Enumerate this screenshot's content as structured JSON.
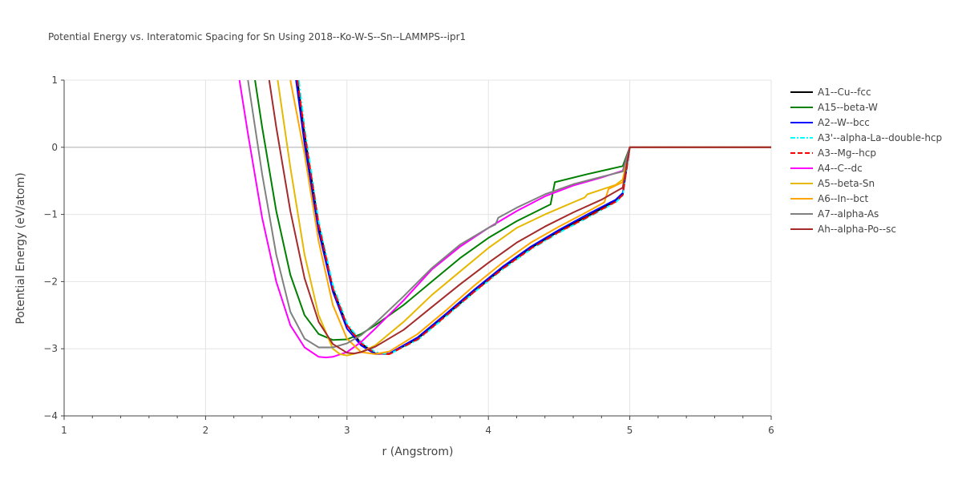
{
  "chart_data": {
    "type": "line",
    "title": "Potential Energy vs. Interatomic Spacing for Sn Using 2018--Ko-W-S--Sn--LAMMPS--ipr1",
    "xlabel": "r (Angstrom)",
    "ylabel": "Potential Energy (eV/atom)",
    "xlim": [
      1,
      6
    ],
    "ylim": [
      -4,
      1
    ],
    "xticks": [
      1,
      2,
      3,
      4,
      5,
      6
    ],
    "xtick_labels": [
      "1",
      "2",
      "3",
      "4",
      "5",
      "6"
    ],
    "yticks": [
      -4,
      -3,
      -2,
      -1,
      0,
      1
    ],
    "ytick_labels": [
      "−4",
      "−3",
      "−2",
      "−1",
      "0",
      "1"
    ],
    "grid": true,
    "legend_position": "right",
    "series": [
      {
        "name": "A1--Cu--fcc",
        "color": "#000000",
        "dash": "solid",
        "x": [
          2.65,
          2.7,
          2.8,
          2.9,
          3.0,
          3.1,
          3.2,
          3.3,
          3.5,
          3.7,
          3.9,
          4.1,
          4.3,
          4.5,
          4.7,
          4.9,
          4.95,
          5.0,
          6.0
        ],
        "y": [
          1.0,
          0.2,
          -1.15,
          -2.1,
          -2.65,
          -2.92,
          -3.07,
          -3.08,
          -2.85,
          -2.5,
          -2.15,
          -1.8,
          -1.5,
          -1.25,
          -1.03,
          -0.8,
          -0.7,
          0.0,
          0.0
        ]
      },
      {
        "name": "A15--beta-W",
        "color": "#008000",
        "dash": "solid",
        "x": [
          2.35,
          2.4,
          2.5,
          2.6,
          2.7,
          2.8,
          2.9,
          3.0,
          3.1,
          3.2,
          3.4,
          3.6,
          3.8,
          4.0,
          4.2,
          4.44,
          4.47,
          4.7,
          4.95,
          5.0,
          6.0
        ],
        "y": [
          1.0,
          0.3,
          -0.95,
          -1.9,
          -2.5,
          -2.78,
          -2.87,
          -2.86,
          -2.78,
          -2.65,
          -2.35,
          -2.0,
          -1.65,
          -1.35,
          -1.1,
          -0.85,
          -0.52,
          -0.4,
          -0.28,
          0.0,
          0.0
        ]
      },
      {
        "name": "A2--W--bcc",
        "color": "#0000ff",
        "dash": "solid",
        "x": [
          2.64,
          2.7,
          2.8,
          2.9,
          3.0,
          3.1,
          3.2,
          3.3,
          3.5,
          3.7,
          3.9,
          4.1,
          4.3,
          4.5,
          4.7,
          4.9,
          4.95,
          5.0,
          6.0
        ],
        "y": [
          1.0,
          0.05,
          -1.25,
          -2.15,
          -2.7,
          -2.95,
          -3.08,
          -3.07,
          -2.83,
          -2.48,
          -2.12,
          -1.78,
          -1.48,
          -1.23,
          -1.0,
          -0.78,
          -0.68,
          0.0,
          0.0
        ]
      },
      {
        "name": "A3'--alpha-La--double-hcp",
        "color": "#00ffff",
        "dash": "dashdot",
        "x": [
          2.66,
          2.7,
          2.8,
          2.9,
          3.0,
          3.1,
          3.2,
          3.3,
          3.5,
          3.7,
          3.9,
          4.1,
          4.3,
          4.5,
          4.7,
          4.9,
          4.95,
          5.0,
          6.0
        ],
        "y": [
          1.0,
          0.3,
          -1.1,
          -2.05,
          -2.62,
          -2.9,
          -3.05,
          -3.08,
          -2.87,
          -2.52,
          -2.16,
          -1.82,
          -1.52,
          -1.27,
          -1.05,
          -0.82,
          -0.72,
          0.0,
          0.0
        ]
      },
      {
        "name": "A3--Mg--hcp",
        "color": "#ff0000",
        "dash": "dash",
        "x": [
          2.65,
          2.7,
          2.8,
          2.9,
          3.0,
          3.1,
          3.2,
          3.3,
          3.5,
          3.7,
          3.9,
          4.1,
          4.3,
          4.5,
          4.7,
          4.9,
          4.95,
          5.0,
          6.0
        ],
        "y": [
          1.0,
          0.22,
          -1.15,
          -2.1,
          -2.65,
          -2.92,
          -3.07,
          -3.08,
          -2.86,
          -2.51,
          -2.15,
          -1.81,
          -1.51,
          -1.26,
          -1.04,
          -0.81,
          -0.71,
          0.0,
          0.0
        ]
      },
      {
        "name": "A4--C--dc",
        "color": "#ff00ff",
        "dash": "solid",
        "x": [
          2.24,
          2.3,
          2.4,
          2.5,
          2.6,
          2.7,
          2.8,
          2.85,
          2.9,
          3.0,
          3.1,
          3.2,
          3.4,
          3.6,
          3.8,
          4.0,
          4.2,
          4.4,
          4.6,
          4.8,
          4.95,
          5.0,
          6.0
        ],
        "y": [
          1.0,
          0.2,
          -1.05,
          -2.0,
          -2.65,
          -2.98,
          -3.12,
          -3.13,
          -3.12,
          -3.05,
          -2.9,
          -2.7,
          -2.28,
          -1.82,
          -1.48,
          -1.2,
          -0.95,
          -0.73,
          -0.57,
          -0.45,
          -0.35,
          0.0,
          0.0
        ]
      },
      {
        "name": "A5--beta-Sn",
        "color": "#e6b800",
        "dash": "solid",
        "x": [
          2.51,
          2.6,
          2.7,
          2.8,
          2.9,
          2.95,
          3.0,
          3.1,
          3.2,
          3.4,
          3.6,
          3.8,
          4.0,
          4.2,
          4.4,
          4.6,
          4.68,
          4.7,
          4.9,
          4.95,
          5.0,
          6.0
        ],
        "y": [
          1.0,
          -0.3,
          -1.6,
          -2.5,
          -3.0,
          -3.08,
          -3.1,
          -3.05,
          -2.95,
          -2.6,
          -2.2,
          -1.85,
          -1.5,
          -1.2,
          -1.0,
          -0.82,
          -0.75,
          -0.7,
          -0.56,
          -0.48,
          0.0,
          0.0
        ]
      },
      {
        "name": "A6--In--bct",
        "color": "#ffa500",
        "dash": "solid",
        "x": [
          2.6,
          2.7,
          2.8,
          2.9,
          3.0,
          3.1,
          3.2,
          3.3,
          3.5,
          3.7,
          3.9,
          4.1,
          4.3,
          4.5,
          4.7,
          4.82,
          4.85,
          4.95,
          5.0,
          6.0
        ],
        "y": [
          1.0,
          -0.1,
          -1.4,
          -2.35,
          -2.85,
          -3.05,
          -3.08,
          -3.04,
          -2.78,
          -2.43,
          -2.06,
          -1.72,
          -1.42,
          -1.18,
          -0.96,
          -0.82,
          -0.62,
          -0.52,
          0.0,
          0.0
        ]
      },
      {
        "name": "A7--alpha-As",
        "color": "#808080",
        "dash": "solid",
        "x": [
          2.3,
          2.4,
          2.5,
          2.6,
          2.7,
          2.8,
          2.9,
          3.0,
          3.1,
          3.2,
          3.4,
          3.6,
          3.8,
          4.0,
          4.05,
          4.07,
          4.2,
          4.4,
          4.6,
          4.8,
          4.95,
          5.0,
          6.0
        ],
        "y": [
          1.0,
          -0.4,
          -1.6,
          -2.45,
          -2.85,
          -2.98,
          -2.98,
          -2.92,
          -2.8,
          -2.62,
          -2.22,
          -1.8,
          -1.45,
          -1.2,
          -1.15,
          -1.05,
          -0.9,
          -0.7,
          -0.55,
          -0.44,
          -0.36,
          0.0,
          0.0
        ]
      },
      {
        "name": "Ah--alpha-Po--sc",
        "color": "#a52a2a",
        "dash": "solid",
        "x": [
          2.45,
          2.5,
          2.6,
          2.7,
          2.8,
          2.9,
          3.0,
          3.05,
          3.1,
          3.2,
          3.4,
          3.6,
          3.8,
          4.0,
          4.2,
          4.4,
          4.6,
          4.8,
          4.95,
          5.0,
          6.0
        ],
        "y": [
          1.0,
          0.3,
          -0.95,
          -1.95,
          -2.6,
          -2.93,
          -3.06,
          -3.07,
          -3.05,
          -2.97,
          -2.72,
          -2.38,
          -2.04,
          -1.72,
          -1.42,
          -1.18,
          -0.97,
          -0.78,
          -0.6,
          0.0,
          0.0
        ]
      }
    ]
  }
}
